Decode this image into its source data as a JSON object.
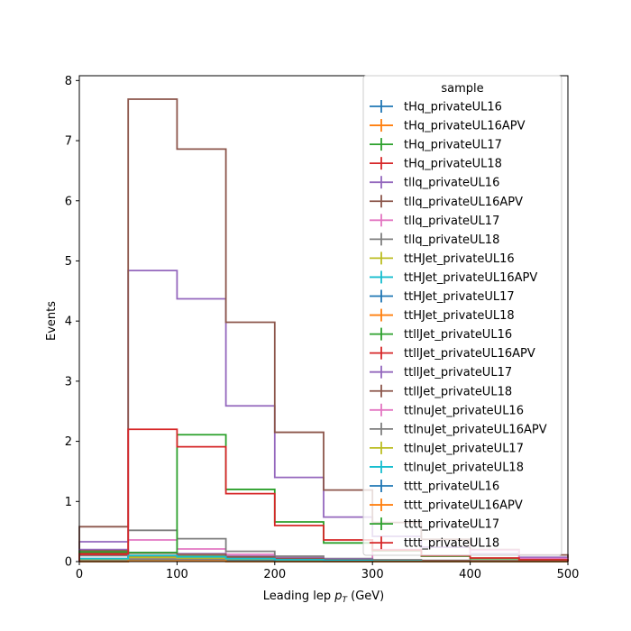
{
  "chart_data": {
    "type": "step",
    "xlabel": "Leading lep",
    "xlabel_math": "p",
    "xlabel_sub": "T",
    "xlabel_unit": "(GeV)",
    "ylabel": "Events",
    "xlim": [
      0,
      500
    ],
    "ylim": [
      0,
      8.08
    ],
    "x_ticks": [
      0,
      100,
      200,
      300,
      400,
      500
    ],
    "y_ticks": [
      0,
      1,
      2,
      3,
      4,
      5,
      6,
      7,
      8
    ],
    "grid": false,
    "bin_edges": [
      0,
      50,
      100,
      150,
      200,
      250,
      300,
      350,
      400,
      450,
      500
    ],
    "legend": {
      "title": "sample",
      "placement": "upper right",
      "entries": [
        {
          "name": "tHq_privateUL16",
          "color": "#1f77b4"
        },
        {
          "name": "tHq_privateUL16APV",
          "color": "#ff7f0e"
        },
        {
          "name": "tHq_privateUL17",
          "color": "#2ca02c"
        },
        {
          "name": "tHq_privateUL18",
          "color": "#d62728"
        },
        {
          "name": "tllq_privateUL16",
          "color": "#9467bd"
        },
        {
          "name": "tllq_privateUL16APV",
          "color": "#8c564b"
        },
        {
          "name": "tllq_privateUL17",
          "color": "#e377c2"
        },
        {
          "name": "tllq_privateUL18",
          "color": "#7f7f7f"
        },
        {
          "name": "ttHJet_privateUL16",
          "color": "#bcbd22"
        },
        {
          "name": "ttHJet_privateUL16APV",
          "color": "#17becf"
        },
        {
          "name": "ttHJet_privateUL17",
          "color": "#1f77b4"
        },
        {
          "name": "ttHJet_privateUL18",
          "color": "#ff7f0e"
        },
        {
          "name": "ttllJet_privateUL16",
          "color": "#2ca02c"
        },
        {
          "name": "ttllJet_privateUL16APV",
          "color": "#d62728"
        },
        {
          "name": "ttllJet_privateUL17",
          "color": "#9467bd"
        },
        {
          "name": "ttllJet_privateUL18",
          "color": "#8c564b"
        },
        {
          "name": "ttlnuJet_privateUL16",
          "color": "#e377c2"
        },
        {
          "name": "ttlnuJet_privateUL16APV",
          "color": "#7f7f7f"
        },
        {
          "name": "ttlnuJet_privateUL17",
          "color": "#bcbd22"
        },
        {
          "name": "ttlnuJet_privateUL18",
          "color": "#17becf"
        },
        {
          "name": "tttt_privateUL16",
          "color": "#1f77b4"
        },
        {
          "name": "tttt_privateUL16APV",
          "color": "#ff7f0e"
        },
        {
          "name": "tttt_privateUL17",
          "color": "#2ca02c"
        },
        {
          "name": "tttt_privateUL18",
          "color": "#d62728"
        }
      ]
    },
    "series": [
      {
        "name": "tHq_privateUL16",
        "color": "#1f77b4",
        "values": [
          0.02,
          0.04,
          0.03,
          0.02,
          0.01,
          0.01,
          0.0,
          0.0,
          0.0,
          0.0
        ]
      },
      {
        "name": "tHq_privateUL16APV",
        "color": "#ff7f0e",
        "values": [
          0.02,
          0.04,
          0.03,
          0.02,
          0.01,
          0.01,
          0.0,
          0.0,
          0.0,
          0.0
        ]
      },
      {
        "name": "tHq_privateUL17",
        "color": "#2ca02c",
        "values": [
          0.03,
          0.06,
          0.05,
          0.03,
          0.02,
          0.01,
          0.01,
          0.0,
          0.0,
          0.0
        ]
      },
      {
        "name": "tHq_privateUL18",
        "color": "#d62728",
        "values": [
          0.04,
          0.08,
          0.07,
          0.04,
          0.02,
          0.01,
          0.01,
          0.0,
          0.0,
          0.0
        ]
      },
      {
        "name": "tllq_privateUL16",
        "color": "#9467bd",
        "values": [
          0.33,
          4.84,
          4.37,
          2.59,
          1.4,
          0.74,
          0.42,
          0.24,
          0.13,
          0.07
        ]
      },
      {
        "name": "tllq_privateUL16APV",
        "color": "#8c564b",
        "values": [
          0.58,
          7.69,
          6.86,
          3.98,
          2.15,
          1.19,
          0.65,
          0.37,
          0.2,
          0.11
        ]
      },
      {
        "name": "tllq_privateUL17",
        "color": "#e377c2",
        "values": [
          0.05,
          0.36,
          0.21,
          0.12,
          0.07,
          0.04,
          0.2,
          0.1,
          0.19,
          0.05
        ]
      },
      {
        "name": "tllq_privateUL18",
        "color": "#7f7f7f",
        "values": [
          0.1,
          0.52,
          0.38,
          0.17,
          0.09,
          0.05,
          0.03,
          0.02,
          0.01,
          0.01
        ]
      },
      {
        "name": "ttHJet_privateUL16",
        "color": "#bcbd22",
        "values": [
          0.01,
          0.03,
          0.03,
          0.02,
          0.01,
          0.01,
          0.0,
          0.0,
          0.0,
          0.0
        ]
      },
      {
        "name": "ttHJet_privateUL16APV",
        "color": "#17becf",
        "values": [
          0.01,
          0.02,
          0.02,
          0.01,
          0.01,
          0.0,
          0.0,
          0.0,
          0.0,
          0.0
        ]
      },
      {
        "name": "ttHJet_privateUL17",
        "color": "#1f77b4",
        "values": [
          0.02,
          0.06,
          0.05,
          0.03,
          0.02,
          0.01,
          0.01,
          0.0,
          0.0,
          0.0
        ]
      },
      {
        "name": "ttHJet_privateUL18",
        "color": "#ff7f0e",
        "values": [
          0.03,
          0.08,
          0.07,
          0.04,
          0.02,
          0.01,
          0.01,
          0.0,
          0.0,
          0.0
        ]
      },
      {
        "name": "ttllJet_privateUL16",
        "color": "#2ca02c",
        "values": [
          0.15,
          0.1,
          0.09,
          0.06,
          0.04,
          0.03,
          0.02,
          0.01,
          0.01,
          0.0
        ]
      },
      {
        "name": "ttllJet_privateUL16APV",
        "color": "#d62728",
        "values": [
          0.12,
          0.09,
          0.08,
          0.05,
          0.03,
          0.02,
          0.01,
          0.01,
          0.0,
          0.0
        ]
      },
      {
        "name": "ttllJet_privateUL17",
        "color": "#9467bd",
        "values": [
          0.2,
          0.15,
          0.13,
          0.09,
          0.06,
          0.04,
          0.02,
          0.01,
          0.01,
          0.01
        ]
      },
      {
        "name": "ttllJet_privateUL18",
        "color": "#8c564b",
        "values": [
          0.18,
          0.14,
          0.12,
          0.08,
          0.05,
          0.03,
          0.02,
          0.01,
          0.01,
          0.0
        ]
      },
      {
        "name": "ttlnuJet_privateUL16",
        "color": "#e377c2",
        "values": [
          0.03,
          0.05,
          0.04,
          0.03,
          0.02,
          0.01,
          0.01,
          0.0,
          0.0,
          0.0
        ]
      },
      {
        "name": "ttlnuJet_privateUL16APV",
        "color": "#7f7f7f",
        "values": [
          0.03,
          0.04,
          0.04,
          0.02,
          0.01,
          0.01,
          0.0,
          0.0,
          0.0,
          0.0
        ]
      },
      {
        "name": "ttlnuJet_privateUL17",
        "color": "#bcbd22",
        "values": [
          0.04,
          0.07,
          0.06,
          0.04,
          0.02,
          0.01,
          0.01,
          0.0,
          0.0,
          0.0
        ]
      },
      {
        "name": "ttlnuJet_privateUL18",
        "color": "#17becf",
        "values": [
          0.05,
          0.1,
          0.08,
          0.05,
          0.03,
          0.02,
          0.01,
          0.0,
          0.0,
          0.0
        ]
      },
      {
        "name": "tttt_privateUL16",
        "color": "#1f77b4",
        "values": [
          0.0,
          0.01,
          0.01,
          0.01,
          0.0,
          0.0,
          0.0,
          0.0,
          0.0,
          0.0
        ]
      },
      {
        "name": "tttt_privateUL16APV",
        "color": "#ff7f0e",
        "values": [
          0.0,
          0.01,
          0.01,
          0.0,
          0.0,
          0.0,
          0.0,
          0.0,
          0.0,
          0.0
        ]
      },
      {
        "name": "tttt_privateUL17",
        "color": "#2ca02c",
        "values": [
          0.16,
          0.15,
          2.11,
          1.2,
          0.66,
          0.31,
          0.18,
          0.09,
          0.05,
          0.03
        ]
      },
      {
        "name": "tttt_privateUL18",
        "color": "#d62728",
        "values": [
          0.13,
          2.2,
          1.91,
          1.13,
          0.6,
          0.36,
          0.19,
          0.1,
          0.06,
          0.03
        ]
      }
    ]
  }
}
